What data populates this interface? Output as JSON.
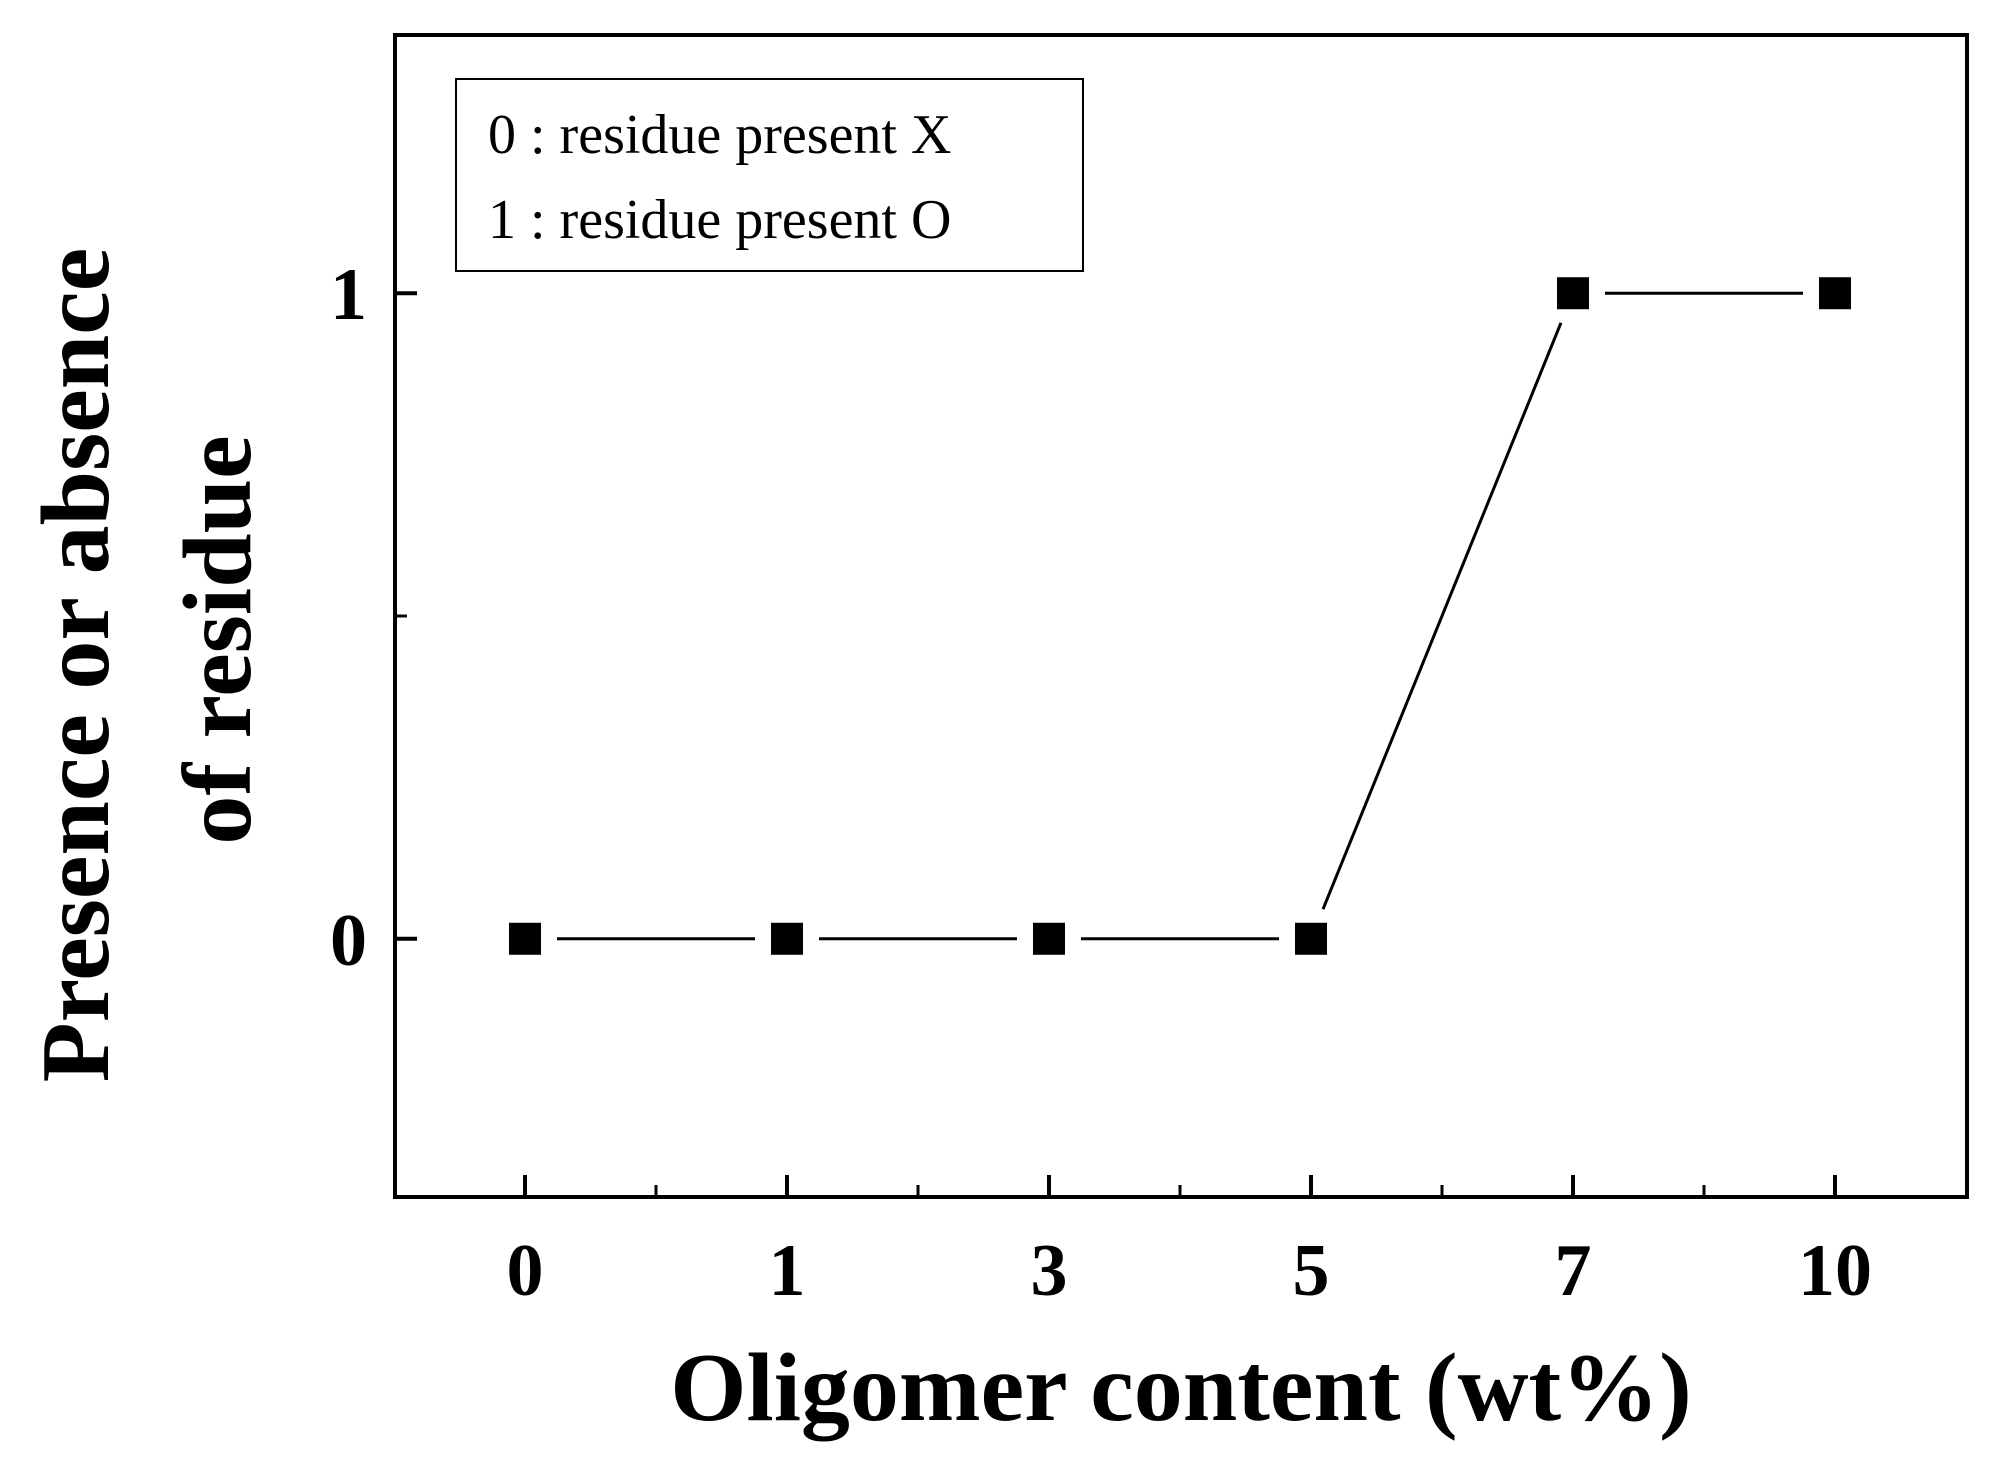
{
  "chart_data": {
    "type": "line",
    "categories": [
      "0",
      "1",
      "3",
      "5",
      "7",
      "10"
    ],
    "series": [
      {
        "values": [
          0,
          0,
          0,
          0,
          1,
          1
        ]
      }
    ],
    "title": "",
    "xlabel": "Oligomer content (wt%)",
    "ylabel_line1": "Presence or absence",
    "ylabel_line2": "of residue",
    "ylim": [
      -0.4,
      1.4
    ],
    "yticks": [
      {
        "value": 1,
        "label": "1"
      },
      {
        "value": 0.5,
        "label": ""
      },
      {
        "value": 0,
        "label": "0"
      }
    ],
    "grid": false,
    "marker": "filled-square",
    "legend_position": "top-left",
    "legend": [
      "0 : residue present X",
      "1 : residue present O"
    ],
    "colors": {
      "line": "#000000",
      "marker": "#000000",
      "axes": "#000000"
    }
  }
}
